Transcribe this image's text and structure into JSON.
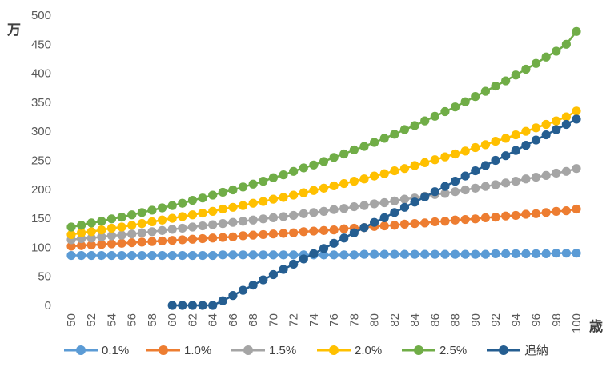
{
  "chart_data": {
    "type": "line",
    "title": "",
    "xlabel": "歳",
    "ylabel": "万",
    "xlim": [
      50,
      100
    ],
    "ylim": [
      0,
      500
    ],
    "x_ticks": [
      50,
      52,
      54,
      56,
      58,
      60,
      62,
      64,
      66,
      68,
      70,
      72,
      74,
      76,
      78,
      80,
      82,
      84,
      86,
      88,
      90,
      92,
      94,
      96,
      98,
      100
    ],
    "y_ticks": [
      0,
      50,
      100,
      150,
      200,
      250,
      300,
      350,
      400,
      450,
      500
    ],
    "grid": false,
    "legend_position": "bottom",
    "series": [
      {
        "name": "0.1%",
        "color": "#5B9BD5",
        "x": [
          50,
          51,
          52,
          53,
          54,
          55,
          56,
          57,
          58,
          59,
          60,
          61,
          62,
          63,
          64,
          65,
          66,
          67,
          68,
          69,
          70,
          71,
          72,
          73,
          74,
          75,
          76,
          77,
          78,
          79,
          80,
          81,
          82,
          83,
          84,
          85,
          86,
          87,
          88,
          89,
          90,
          91,
          92,
          93,
          94,
          95,
          96,
          97,
          98,
          99,
          100
        ],
        "values": [
          86,
          86,
          86,
          86,
          86,
          86,
          86,
          86,
          86,
          86,
          86,
          86,
          86,
          86,
          86,
          87,
          87,
          87,
          87,
          87,
          87,
          87,
          87,
          87,
          87,
          87,
          87,
          87,
          87,
          88,
          88,
          88,
          88,
          88,
          88,
          88,
          88,
          88,
          88,
          88,
          88,
          88,
          89,
          89,
          89,
          89,
          89,
          89,
          90,
          90,
          90
        ]
      },
      {
        "name": "1.0%",
        "color": "#ED7D31",
        "x": [
          50,
          51,
          52,
          53,
          54,
          55,
          56,
          57,
          58,
          59,
          60,
          61,
          62,
          63,
          64,
          65,
          66,
          67,
          68,
          69,
          70,
          71,
          72,
          73,
          74,
          75,
          76,
          77,
          78,
          79,
          80,
          81,
          82,
          83,
          84,
          85,
          86,
          87,
          88,
          89,
          90,
          91,
          92,
          93,
          94,
          95,
          96,
          97,
          98,
          99,
          100
        ],
        "values": [
          102,
          103,
          104,
          105,
          106,
          107,
          108,
          109,
          110,
          111,
          112,
          113,
          114,
          115,
          116,
          117,
          118,
          120,
          121,
          122,
          123,
          124,
          125,
          127,
          128,
          129,
          130,
          132,
          133,
          134,
          136,
          137,
          138,
          140,
          141,
          142,
          144,
          145,
          147,
          148,
          149,
          151,
          152,
          154,
          155,
          157,
          158,
          160,
          162,
          163,
          166
        ]
      },
      {
        "name": "1.5%",
        "color": "#A5A5A5",
        "x": [
          50,
          51,
          52,
          53,
          54,
          55,
          56,
          57,
          58,
          59,
          60,
          61,
          62,
          63,
          64,
          65,
          66,
          67,
          68,
          69,
          70,
          71,
          72,
          73,
          74,
          75,
          76,
          77,
          78,
          79,
          80,
          81,
          82,
          83,
          84,
          85,
          86,
          87,
          88,
          89,
          90,
          91,
          92,
          93,
          94,
          95,
          96,
          97,
          98,
          99,
          100
        ],
        "values": [
          113,
          115,
          116,
          118,
          120,
          121,
          123,
          125,
          127,
          129,
          131,
          133,
          135,
          137,
          139,
          141,
          143,
          145,
          147,
          149,
          151,
          153,
          155,
          158,
          160,
          162,
          165,
          167,
          170,
          172,
          175,
          177,
          180,
          183,
          185,
          188,
          191,
          193,
          196,
          199,
          202,
          205,
          208,
          211,
          214,
          218,
          221,
          224,
          228,
          231,
          236
        ]
      },
      {
        "name": "2.0%",
        "color": "#FFC000",
        "x": [
          50,
          51,
          52,
          53,
          54,
          55,
          56,
          57,
          58,
          59,
          60,
          61,
          62,
          63,
          64,
          65,
          66,
          67,
          68,
          69,
          70,
          71,
          72,
          73,
          74,
          75,
          76,
          77,
          78,
          79,
          80,
          81,
          82,
          83,
          84,
          85,
          86,
          87,
          88,
          89,
          90,
          91,
          92,
          93,
          94,
          95,
          96,
          97,
          98,
          99,
          100
        ],
        "values": [
          122,
          125,
          127,
          130,
          133,
          135,
          138,
          141,
          144,
          147,
          150,
          153,
          156,
          159,
          162,
          166,
          169,
          172,
          176,
          179,
          183,
          186,
          190,
          194,
          198,
          202,
          206,
          210,
          214,
          218,
          223,
          227,
          232,
          236,
          241,
          246,
          251,
          256,
          261,
          266,
          272,
          277,
          283,
          288,
          294,
          300,
          306,
          312,
          318,
          325,
          335
        ]
      },
      {
        "name": "2.5%",
        "color": "#70AD47",
        "x": [
          50,
          51,
          52,
          53,
          54,
          55,
          56,
          57,
          58,
          59,
          60,
          61,
          62,
          63,
          64,
          65,
          66,
          67,
          68,
          69,
          70,
          71,
          72,
          73,
          74,
          75,
          76,
          77,
          78,
          79,
          80,
          81,
          82,
          83,
          84,
          85,
          86,
          87,
          88,
          89,
          90,
          91,
          92,
          93,
          94,
          95,
          96,
          97,
          98,
          99,
          100
        ],
        "values": [
          135,
          138,
          142,
          145,
          149,
          152,
          156,
          160,
          164,
          168,
          172,
          176,
          181,
          185,
          190,
          195,
          199,
          204,
          209,
          214,
          220,
          225,
          231,
          237,
          242,
          248,
          255,
          261,
          268,
          274,
          281,
          288,
          295,
          303,
          310,
          318,
          326,
          334,
          342,
          351,
          360,
          369,
          378,
          387,
          397,
          407,
          417,
          428,
          438,
          450,
          472
        ]
      },
      {
        "name": "追納",
        "color": "#255E91",
        "x": [
          60,
          61,
          62,
          63,
          64,
          65,
          66,
          67,
          68,
          69,
          70,
          71,
          72,
          73,
          74,
          75,
          76,
          77,
          78,
          79,
          80,
          81,
          82,
          83,
          84,
          85,
          86,
          87,
          88,
          89,
          90,
          91,
          92,
          93,
          94,
          95,
          96,
          97,
          98,
          99,
          100
        ],
        "values": [
          0,
          0,
          0,
          0,
          0,
          8,
          17,
          26,
          35,
          44,
          53,
          62,
          71,
          80,
          89,
          98,
          107,
          116,
          125,
          134,
          143,
          151,
          160,
          169,
          178,
          187,
          196,
          205,
          214,
          223,
          232,
          241,
          250,
          258,
          267,
          276,
          285,
          294,
          303,
          312,
          321
        ]
      }
    ]
  }
}
